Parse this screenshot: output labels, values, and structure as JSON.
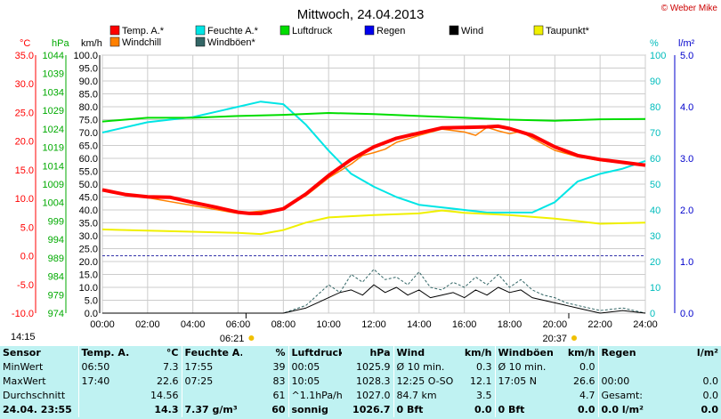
{
  "header": {
    "title": "Mittwoch, 24.04.2013",
    "copyright": "© Weber Mike"
  },
  "legend": [
    {
      "label": "Temp. A.*",
      "color": "#ff0000"
    },
    {
      "label": "Feuchte A.*",
      "color": "#00e5e5"
    },
    {
      "label": "Luftdruck",
      "color": "#00dd00"
    },
    {
      "label": "Regen",
      "color": "#0000ee"
    },
    {
      "label": "Wind",
      "color": "#000000"
    },
    {
      "label": "Taupunkt*",
      "color": "#f0f000"
    },
    {
      "label": "Windchill",
      "color": "#ff8000"
    },
    {
      "label": "Windböen*",
      "color": "#336666"
    }
  ],
  "units": {
    "temp": "°C",
    "pressure": "hPa",
    "wind": "km/h",
    "humidity": "%",
    "rain": "l/m²"
  },
  "timeline": {
    "start_marker": "14:15",
    "sunrise": "06:21",
    "sunset": "20:37"
  },
  "chart_data": {
    "type": "line",
    "x_ticks": [
      "00:00",
      "02:00",
      "04:00",
      "06:00",
      "08:00",
      "10:00",
      "12:00",
      "14:00",
      "16:00",
      "18:00",
      "20:00",
      "22:00",
      "24:00"
    ],
    "axes": {
      "temp_c": {
        "min": -10,
        "max": 35,
        "ticks": [
          "35.0",
          "30.0",
          "25.0",
          "20.0",
          "15.0",
          "10.0",
          "5.0",
          "0.0",
          "-5.0",
          "-10.0"
        ]
      },
      "pressure_hpa": {
        "min": 974,
        "max": 1044,
        "ticks": [
          "1044",
          "1039",
          "1034",
          "1029",
          "1024",
          "1019",
          "1014",
          "1009",
          "1004",
          "999",
          "994",
          "989",
          "984",
          "979",
          "974"
        ]
      },
      "wind_kmh": {
        "min": 0,
        "max": 100,
        "ticks": [
          "100.0",
          "95.0",
          "90.0",
          "85.0",
          "80.0",
          "75.0",
          "70.0",
          "65.0",
          "60.0",
          "55.0",
          "50.0",
          "45.0",
          "40.0",
          "35.0",
          "30.0",
          "25.0",
          "20.0",
          "15.0",
          "10.0",
          "5.0",
          "0.0"
        ]
      },
      "humidity_pct": {
        "min": 0,
        "max": 100,
        "ticks": [
          "100",
          "90",
          "80",
          "70",
          "60",
          "50",
          "40",
          "30",
          "20",
          "10",
          "0"
        ]
      },
      "rain_lm2": {
        "min": 0,
        "max": 5,
        "ticks": [
          "5.0",
          "4.0",
          "3.0",
          "2.0",
          "1.0",
          "0.0"
        ]
      }
    },
    "series": [
      {
        "name": "Temp. A.*",
        "axis": "temp_c",
        "color": "#ff0000",
        "x": [
          0,
          1,
          2,
          3,
          4,
          5,
          6,
          6.5,
          7,
          8,
          9,
          10,
          11,
          12,
          13,
          14,
          15,
          16,
          17,
          17.5,
          18,
          19,
          20,
          21,
          22,
          23,
          24
        ],
        "y": [
          11.5,
          10.7,
          10.3,
          10.2,
          9.3,
          8.5,
          7.6,
          7.4,
          7.4,
          8.2,
          10.8,
          14,
          16.8,
          19,
          20.5,
          21.4,
          22.3,
          22.4,
          22.5,
          22.6,
          22.2,
          21,
          19,
          17.5,
          16.8,
          16.3,
          15.8
        ]
      },
      {
        "name": "Windchill",
        "axis": "temp_c",
        "color": "#ff8000",
        "x": [
          0,
          6,
          8,
          9,
          10,
          11,
          11.5,
          12,
          12.5,
          13,
          14,
          15,
          16,
          16.5,
          17,
          17.5,
          18,
          18.5,
          19,
          20,
          21,
          22,
          24
        ],
        "y": [
          11.5,
          7.4,
          8.2,
          10.5,
          13.6,
          16,
          17.5,
          18,
          18.6,
          19.8,
          21,
          22.1,
          21.6,
          21,
          22.4,
          21.8,
          21.3,
          21.7,
          20.5,
          18.4,
          17.3,
          16.6,
          15.8
        ]
      },
      {
        "name": "Feuchte A.*",
        "axis": "humidity_pct",
        "color": "#00e5e5",
        "x": [
          0,
          2,
          4,
          5,
          6,
          7,
          8,
          9,
          10,
          11,
          12,
          13,
          14,
          15,
          16,
          17,
          18,
          19,
          20,
          21,
          22,
          23,
          24
        ],
        "y": [
          70,
          74,
          76,
          78,
          80,
          82,
          81,
          73,
          63,
          54,
          49,
          45,
          42,
          41,
          40,
          39,
          39,
          39,
          43,
          51,
          54,
          56,
          59
        ]
      },
      {
        "name": "Luftdruck",
        "axis": "pressure_hpa",
        "color": "#00dd00",
        "x": [
          0,
          2,
          4,
          6,
          8,
          10,
          12,
          14,
          16,
          18,
          20,
          22,
          24
        ],
        "y": [
          1026,
          1027,
          1027,
          1027.5,
          1027.8,
          1028.3,
          1028,
          1027.5,
          1027,
          1026.5,
          1026.2,
          1026.6,
          1026.7
        ]
      },
      {
        "name": "Taupunkt*",
        "axis": "temp_c",
        "color": "#f0f000",
        "x": [
          0,
          2,
          4,
          6,
          7,
          8,
          9,
          10,
          12,
          14,
          15,
          16,
          18,
          20,
          22,
          24
        ],
        "y": [
          4.6,
          4.4,
          4.2,
          4,
          3.8,
          4.5,
          5.8,
          6.7,
          7.1,
          7.4,
          7.9,
          7.5,
          7.1,
          6.5,
          5.6,
          5.8
        ]
      },
      {
        "name": "Windböen*",
        "axis": "wind_kmh",
        "color": "#336666",
        "dashed": true,
        "x": [
          0,
          8,
          9,
          9.5,
          10,
          10.5,
          11,
          11.5,
          12,
          12.5,
          13,
          13.5,
          14,
          14.5,
          15,
          15.5,
          16,
          16.5,
          17,
          17.5,
          18,
          18.5,
          19,
          19.5,
          20,
          20.5,
          21,
          22,
          23,
          24
        ],
        "y": [
          0,
          0,
          3,
          7,
          11,
          8,
          15,
          12,
          17,
          13,
          14,
          11,
          16,
          10,
          9,
          12,
          10,
          14,
          11,
          15,
          10,
          13,
          9,
          7,
          6,
          4,
          3,
          1,
          2,
          0
        ]
      },
      {
        "name": "Wind",
        "axis": "wind_kmh",
        "color": "#000000",
        "x": [
          0,
          8,
          9,
          9.5,
          10,
          10.5,
          11,
          11.5,
          12,
          12.5,
          13,
          13.5,
          14,
          14.5,
          15,
          15.5,
          16,
          16.5,
          17,
          17.5,
          18,
          18.5,
          19,
          19.5,
          20,
          20.5,
          21,
          22,
          23,
          24
        ],
        "y": [
          0,
          0,
          2,
          4,
          6,
          8,
          9,
          7,
          11,
          8,
          10,
          7,
          9,
          6,
          7,
          8,
          6,
          9,
          7,
          10,
          8,
          9,
          6,
          5,
          4,
          3,
          2,
          0,
          1,
          0
        ]
      }
    ]
  },
  "table": {
    "headers": [
      "Sensor",
      "Temp. A.",
      "°C",
      "Feuchte A.",
      "%",
      "Luftdruck",
      "hPa",
      "Wind",
      "km/h",
      "Windböen",
      "km/h",
      "Regen",
      "l/m²"
    ],
    "rows": [
      [
        "MinWert",
        "06:50",
        "7.3",
        "17:55",
        "39",
        "00:05",
        "1025.9",
        "Ø 10 min.",
        "0.3",
        "Ø 10 min.",
        "0.0",
        "",
        ""
      ],
      [
        "MaxWert",
        "17:40",
        "22.6",
        "07:25",
        "83",
        "10:05",
        "1028.3",
        "12:25   O-SO",
        "12.1",
        "17:05   N",
        "26.6",
        "00:00",
        "0.0"
      ],
      [
        "Durchschnitt",
        "",
        "14.56",
        "",
        "61",
        "^1.1hPa/h",
        "1027.0",
        "84.7 km",
        "3.5",
        "",
        "4.7",
        "Gesamt:",
        "0.0"
      ],
      [
        "24.04.  23:55",
        "",
        "14.3",
        "7.37 g/m³",
        "60",
        "sonnig",
        "1026.7",
        "0 Bft",
        "0.0",
        "0 Bft",
        "0.0",
        "0.0 l/m²",
        "0.0"
      ]
    ]
  }
}
